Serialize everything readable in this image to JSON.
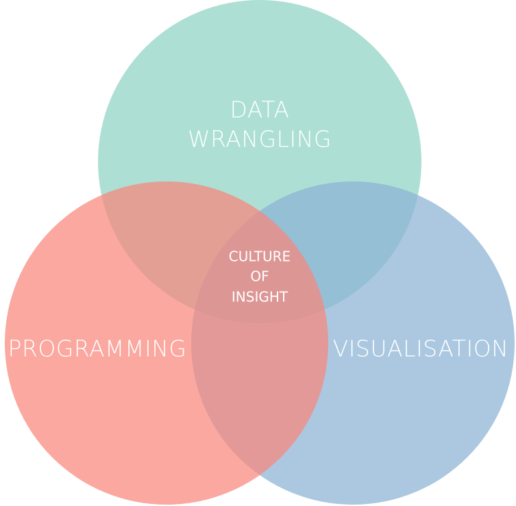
{
  "diagram": {
    "colors": {
      "data_wrangling": "#8ed3c4",
      "programming": "#f8867c",
      "visualisation": "#8bb3d4"
    },
    "sets": {
      "data_wrangling": {
        "line1": "DATA",
        "line2": "WRANGLING"
      },
      "programming": {
        "label": "PROGRAMMING"
      },
      "visualisation": {
        "label": "VISUALISATION"
      }
    },
    "intersection": {
      "line1": "CULTURE",
      "line2": "OF",
      "line3": "INSIGHT"
    }
  }
}
